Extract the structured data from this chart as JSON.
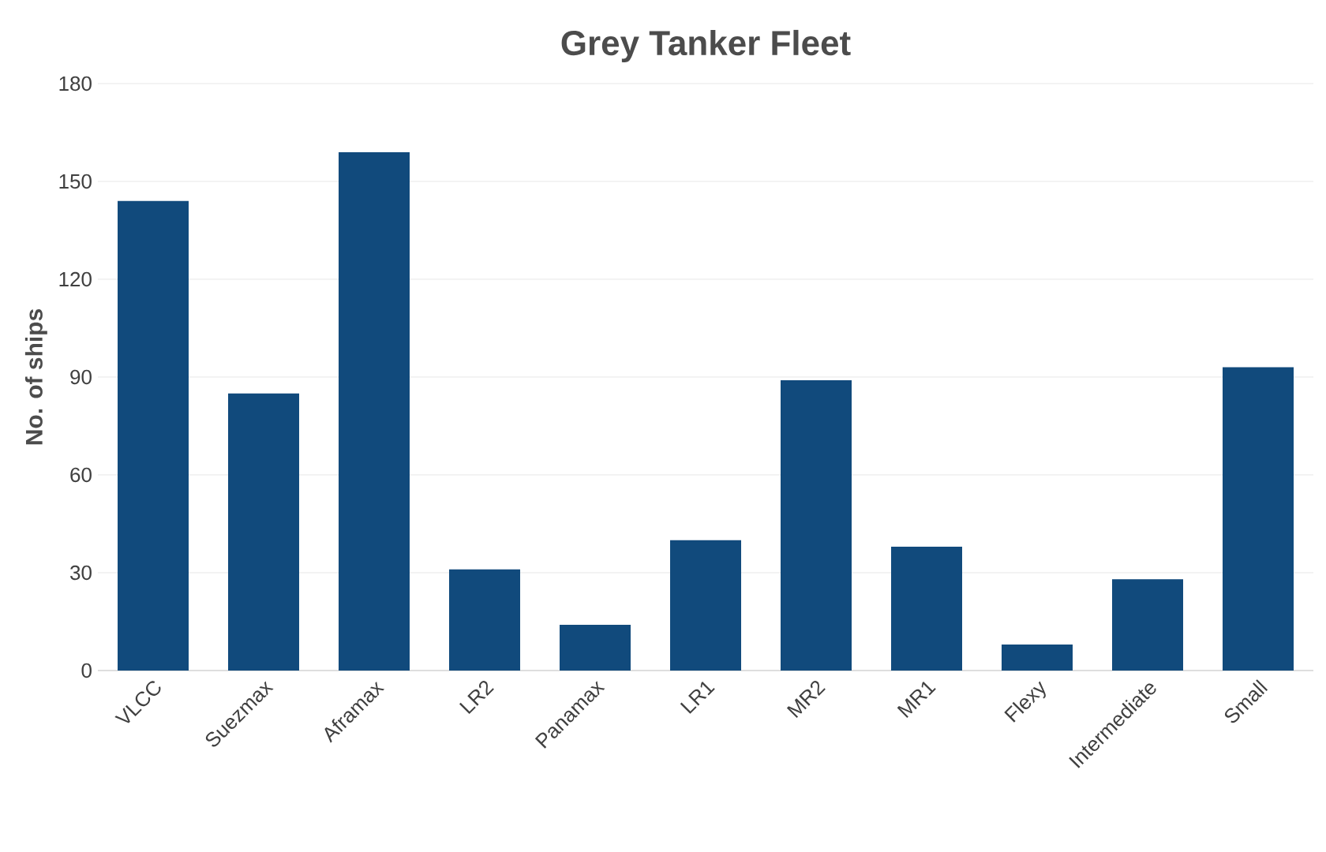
{
  "chart_data": {
    "type": "bar",
    "title": "Grey Tanker Fleet",
    "ylabel": "No. of ships",
    "categories": [
      "VLCC",
      "Suezmax",
      "Aframax",
      "LR2",
      "Panamax",
      "LR1",
      "MR2",
      "MR1",
      "Flexy",
      "Intermediate",
      "Small"
    ],
    "values": [
      144,
      85,
      159,
      31,
      14,
      40,
      89,
      38,
      8,
      28,
      93
    ],
    "color": "#114a7c",
    "ylim": [
      0,
      180
    ],
    "yticks": [
      0,
      30,
      60,
      90,
      120,
      150,
      180
    ],
    "grid": "y"
  }
}
